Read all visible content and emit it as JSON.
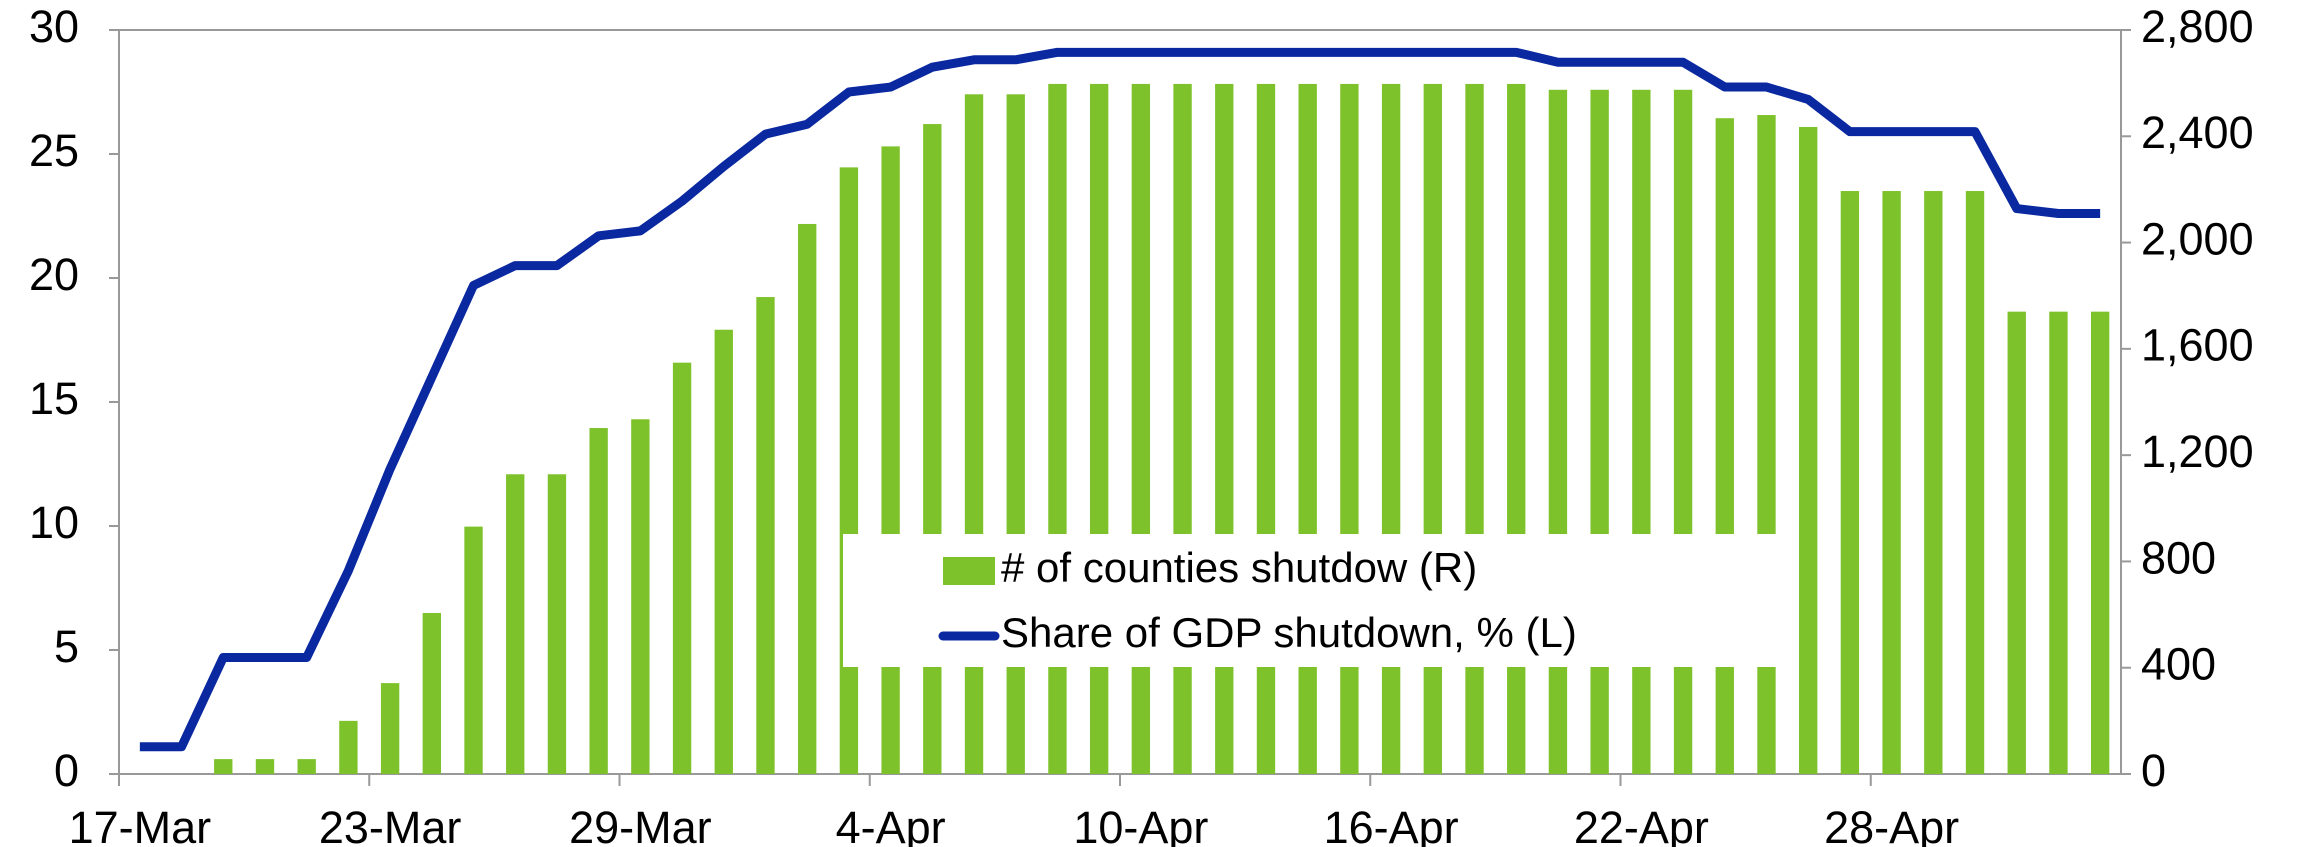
{
  "chart_data": {
    "type": "bar_line",
    "categories": [
      "17-Mar",
      null,
      null,
      null,
      null,
      null,
      "23-Mar",
      null,
      null,
      null,
      null,
      null,
      "29-Mar",
      null,
      null,
      null,
      null,
      null,
      "4-Apr",
      null,
      null,
      null,
      null,
      null,
      "10-Apr",
      null,
      null,
      null,
      null,
      null,
      "16-Apr",
      null,
      null,
      null,
      null,
      null,
      "22-Apr",
      null,
      null,
      null,
      null,
      null,
      "28-Apr",
      null,
      null,
      null,
      null,
      null
    ],
    "series": [
      {
        "name": "# of counties shutdow (R)",
        "type": "bar",
        "axis": "y2",
        "color": "#7dc22a",
        "values": [
          0,
          0,
          56,
          56,
          56,
          200,
          342,
          606,
          931,
          1128,
          1128,
          1302,
          1335,
          1548,
          1672,
          1795,
          2070,
          2283,
          2362,
          2446,
          2558,
          2558,
          2597,
          2597,
          2597,
          2597,
          2597,
          2597,
          2597,
          2597,
          2597,
          2597,
          2597,
          2597,
          2575,
          2575,
          2575,
          2575,
          2468,
          2480,
          2435,
          2194,
          2194,
          2194,
          2194,
          1740,
          1740,
          1740
        ]
      },
      {
        "name": "Share of GDP shutdown, % (L)",
        "type": "line",
        "axis": "y",
        "color": "#0a28a0",
        "values": [
          1.1,
          1.1,
          4.7,
          4.7,
          4.7,
          8.2,
          12.3,
          16.0,
          19.7,
          20.5,
          20.5,
          21.7,
          21.9,
          23.1,
          24.5,
          25.8,
          26.2,
          27.5,
          27.7,
          28.5,
          28.8,
          28.8,
          29.1,
          29.1,
          29.1,
          29.1,
          29.1,
          29.1,
          29.1,
          29.1,
          29.1,
          29.1,
          29.1,
          29.1,
          28.7,
          28.7,
          28.7,
          28.7,
          27.7,
          27.7,
          27.2,
          25.9,
          25.9,
          25.9,
          25.9,
          22.8,
          22.6,
          22.6
        ]
      }
    ],
    "ylim": [
      0,
      30
    ],
    "yticks": [
      0,
      5,
      10,
      15,
      20,
      25,
      30
    ],
    "y2lim": [
      0,
      2800
    ],
    "y2ticks": [
      0,
      400,
      800,
      {
        "value": 1200,
        "label": "1,200"
      },
      {
        "value": 1600,
        "label": "1,600"
      },
      {
        "value": 2000,
        "label": "2,000"
      },
      {
        "value": 2400,
        "label": "2,400"
      },
      {
        "value": 2800,
        "label": "2,800"
      }
    ],
    "legend": "center"
  }
}
